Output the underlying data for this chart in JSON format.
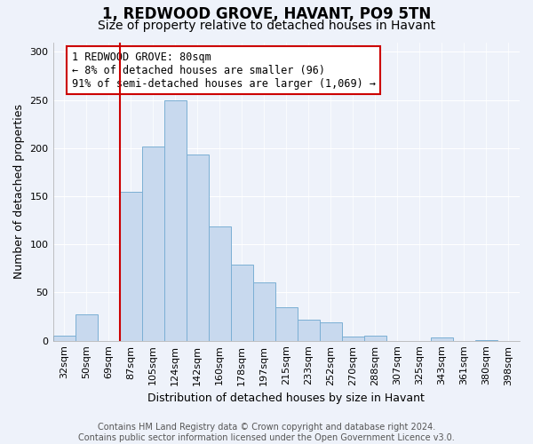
{
  "title": "1, REDWOOD GROVE, HAVANT, PO9 5TN",
  "subtitle": "Size of property relative to detached houses in Havant",
  "xlabel": "Distribution of detached houses by size in Havant",
  "ylabel": "Number of detached properties",
  "categories": [
    "32sqm",
    "50sqm",
    "69sqm",
    "87sqm",
    "105sqm",
    "124sqm",
    "142sqm",
    "160sqm",
    "178sqm",
    "197sqm",
    "215sqm",
    "233sqm",
    "252sqm",
    "270sqm",
    "288sqm",
    "307sqm",
    "325sqm",
    "343sqm",
    "361sqm",
    "380sqm",
    "398sqm"
  ],
  "values": [
    5,
    27,
    0,
    155,
    202,
    250,
    193,
    119,
    79,
    61,
    35,
    22,
    19,
    4,
    5,
    0,
    0,
    3,
    0,
    1,
    0
  ],
  "bar_color": "#c8d9ee",
  "bar_edge_color": "#7bafd4",
  "marker_color": "#cc0000",
  "annotation_text": "1 REDWOOD GROVE: 80sqm\n← 8% of detached houses are smaller (96)\n91% of semi-detached houses are larger (1,069) →",
  "annotation_box_color": "#ffffff",
  "annotation_box_edge": "#cc0000",
  "ylim": [
    0,
    310
  ],
  "yticks": [
    0,
    50,
    100,
    150,
    200,
    250,
    300
  ],
  "footer_line1": "Contains HM Land Registry data © Crown copyright and database right 2024.",
  "footer_line2": "Contains public sector information licensed under the Open Government Licence v3.0.",
  "plot_bg_color": "#eef2fa",
  "fig_bg_color": "#eef2fa",
  "title_fontsize": 12,
  "subtitle_fontsize": 10,
  "axis_label_fontsize": 9,
  "tick_fontsize": 8,
  "annotation_fontsize": 8.5,
  "footer_fontsize": 7
}
